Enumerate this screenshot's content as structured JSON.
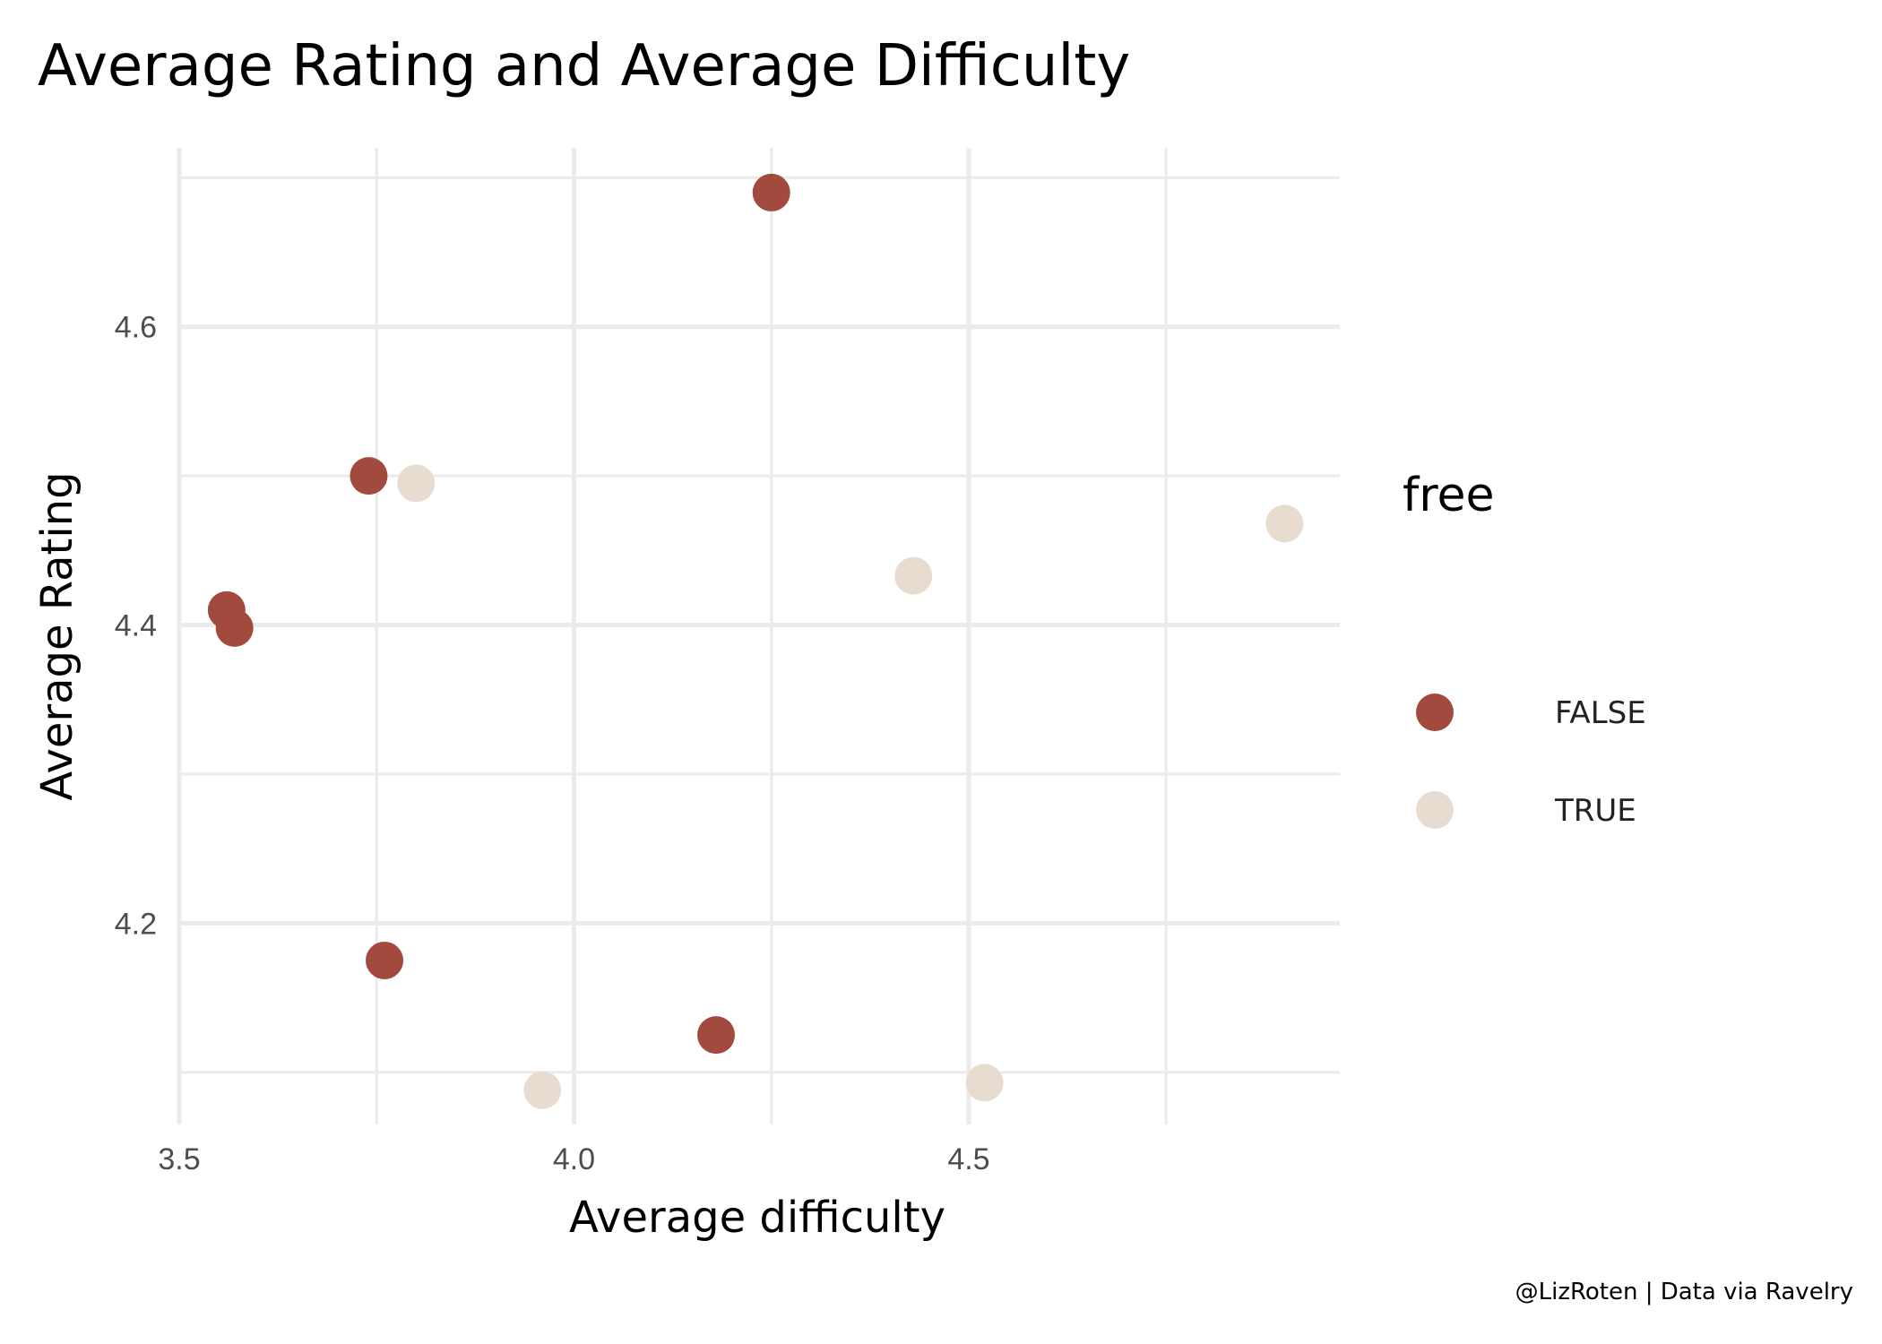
{
  "chart_data": {
    "type": "scatter",
    "title": "Average Rating and Average Difficulty",
    "xlabel": "Average difficulty",
    "ylabel": "Average Rating",
    "xlim": [
      3.5,
      4.97
    ],
    "ylim": [
      4.065,
      4.72
    ],
    "x_ticks": [
      3.5,
      4.0,
      4.5
    ],
    "x_tick_labels": [
      "3.5",
      "4.0",
      "4.5"
    ],
    "y_ticks": [
      4.2,
      4.4,
      4.6
    ],
    "y_tick_labels": [
      "4.2",
      "4.4",
      "4.6"
    ],
    "grid": true,
    "legend": {
      "title": "free",
      "placement": "right",
      "entries": [
        {
          "label": "FALSE",
          "color": "#a34a3e"
        },
        {
          "label": "TRUE",
          "color": "#e8dcd0"
        }
      ]
    },
    "series": [
      {
        "name": "FALSE",
        "color": "#a34a3e",
        "points": [
          {
            "x": 4.25,
            "y": 4.69
          },
          {
            "x": 3.74,
            "y": 4.5
          },
          {
            "x": 3.56,
            "y": 4.41
          },
          {
            "x": 3.57,
            "y": 4.398
          },
          {
            "x": 3.76,
            "y": 4.175
          },
          {
            "x": 4.18,
            "y": 4.125
          }
        ]
      },
      {
        "name": "TRUE",
        "color": "#e8dcd0",
        "points": [
          {
            "x": 3.8,
            "y": 4.495
          },
          {
            "x": 4.9,
            "y": 4.468
          },
          {
            "x": 4.43,
            "y": 4.433
          },
          {
            "x": 3.96,
            "y": 4.088
          },
          {
            "x": 4.52,
            "y": 4.093
          }
        ]
      }
    ],
    "caption": "@LizRoten | Data via Ravelry"
  }
}
